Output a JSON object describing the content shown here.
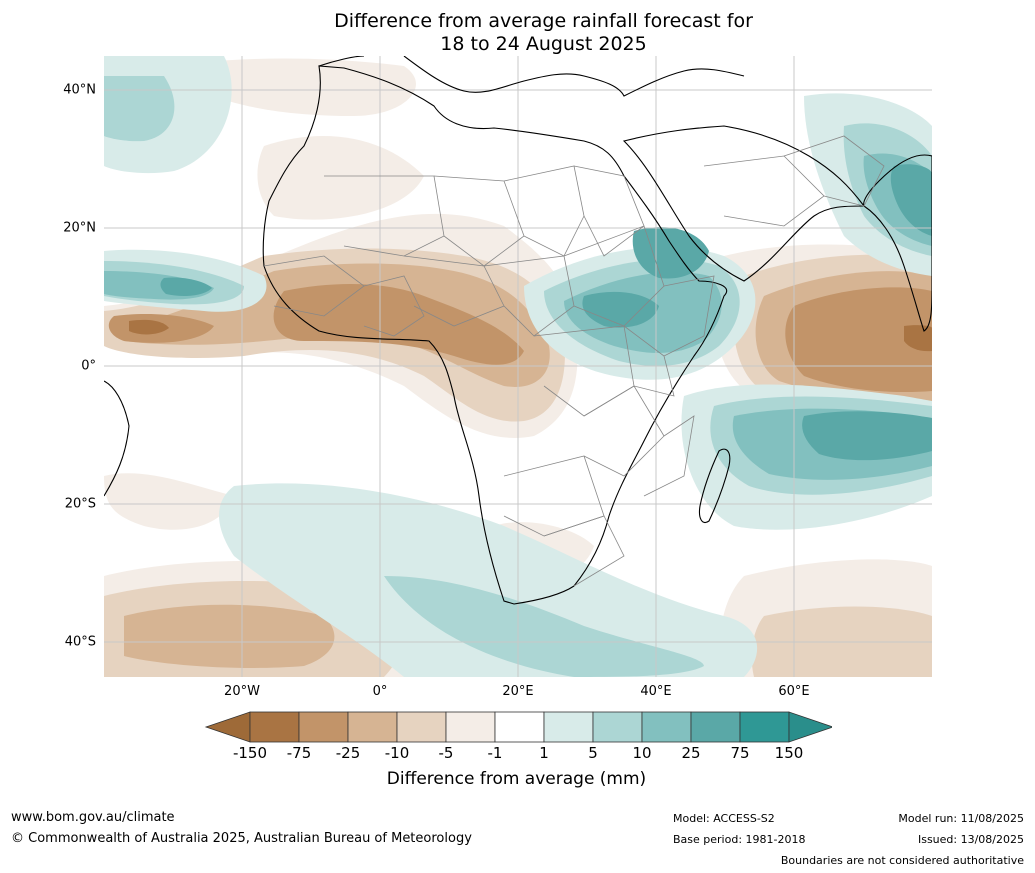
{
  "title": {
    "line1": "Difference from average rainfall forecast for",
    "line2": "18 to 24 August 2025"
  },
  "map": {
    "lat_labels": [
      "40°N",
      "20°N",
      "0°",
      "20°S",
      "40°S"
    ],
    "lon_labels": [
      "20°W",
      "0°",
      "20°E",
      "40°E",
      "60°E"
    ],
    "gridlines": true,
    "extent": {
      "lon_min": -40,
      "lon_max": 80,
      "lat_min": -45,
      "lat_max": 45
    }
  },
  "colorbar": {
    "title": "Difference from average (mm)",
    "tick_labels": [
      "-150",
      "-75",
      "-25",
      "-10",
      "-5",
      "-1",
      "1",
      "5",
      "10",
      "25",
      "75",
      "150"
    ],
    "colors": {
      "extend_low": "#9e6a38",
      "bins": [
        "#a97443",
        "#c29469",
        "#d6b493",
        "#e6d3c0",
        "#f4ede7",
        "#ffffff",
        "#d8ebe9",
        "#acd6d4",
        "#82c0bf",
        "#5aa8a7",
        "#2f9895"
      ],
      "extend_high": "#2a8e8b"
    }
  },
  "footer": {
    "website": "www.bom.gov.au/climate",
    "copyright": "© Commonwealth of Australia 2025, Australian Bureau of Meteorology",
    "model": "Model: ACCESS-S2",
    "base_period": "Base period: 1981-2018",
    "model_run": "Model run: 11/08/2025",
    "issued": "Issued: 13/08/2025",
    "disclaimer": "Boundaries are not considered authoritative"
  }
}
